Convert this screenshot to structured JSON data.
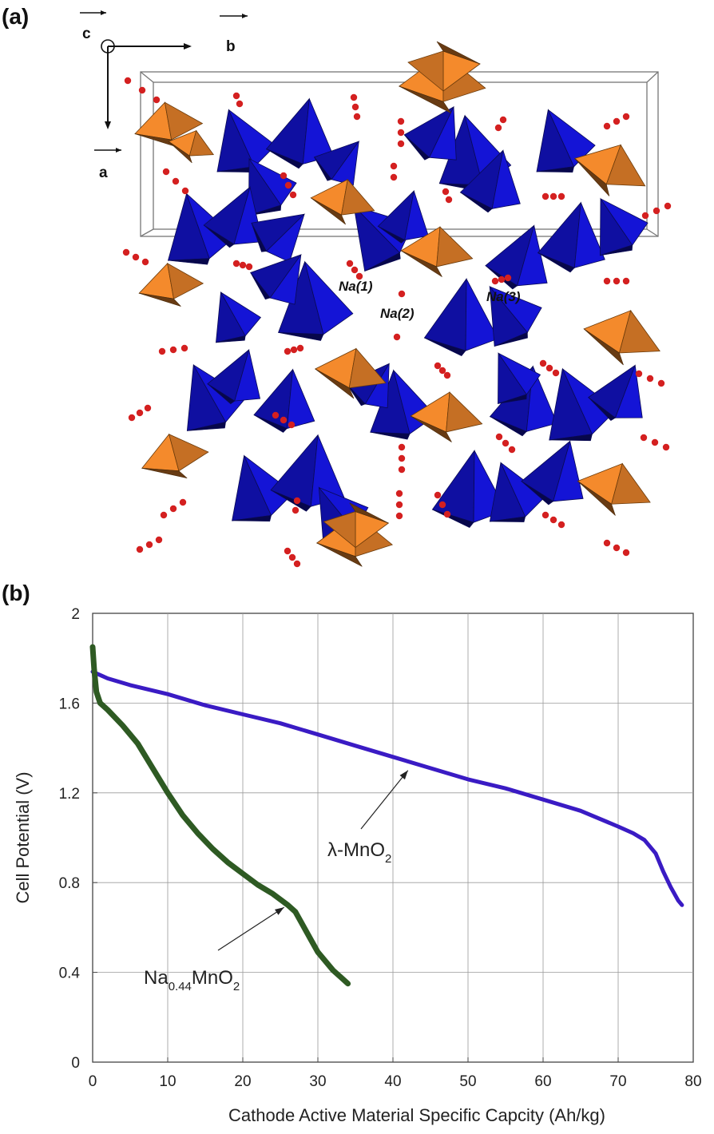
{
  "panel_a": {
    "label": "(a)",
    "axes": {
      "c": "c",
      "b": "b",
      "a": "a"
    },
    "sites": [
      "Na(1)",
      "Na(2)",
      "Na(3)"
    ],
    "colors": {
      "tetrahedra_blue": "#1414d6",
      "octahedra_orange": "#e8832a",
      "na_atoms": "#d42020"
    }
  },
  "panel_b": {
    "label": "(b)"
  },
  "chart_data": {
    "type": "line",
    "xlabel": "Cathode Active Material Specific  Capcity (Ah/kg)",
    "ylabel": "Cell Potential (V)",
    "xlim": [
      0,
      80
    ],
    "ylim": [
      0,
      2
    ],
    "xticks": [
      "0",
      "10",
      "20",
      "30",
      "40",
      "50",
      "60",
      "70",
      "80"
    ],
    "yticks": [
      "0",
      "0.4",
      "0.8",
      "1.2",
      "1.6",
      "2"
    ],
    "grid": true,
    "series": [
      {
        "name": "λ-MnO2",
        "color": "#3a1bc4",
        "x": [
          0,
          2,
          5,
          10,
          15,
          20,
          25,
          30,
          35,
          40,
          45,
          50,
          55,
          60,
          65,
          70,
          72,
          73.5,
          75,
          76,
          77,
          78,
          78.5
        ],
        "y": [
          1.74,
          1.71,
          1.68,
          1.64,
          1.59,
          1.55,
          1.51,
          1.46,
          1.41,
          1.36,
          1.31,
          1.26,
          1.22,
          1.17,
          1.12,
          1.05,
          1.02,
          0.99,
          0.93,
          0.85,
          0.78,
          0.72,
          0.7
        ]
      },
      {
        "name": "Na0.44MnO2",
        "color": "#2e5a23",
        "x": [
          0,
          0.2,
          0.5,
          1,
          2,
          4,
          6,
          8,
          10,
          12,
          14,
          16,
          18,
          20,
          22,
          24,
          26,
          27,
          28,
          29,
          30,
          31,
          32,
          33,
          34
        ],
        "y": [
          1.85,
          1.75,
          1.65,
          1.6,
          1.57,
          1.5,
          1.42,
          1.31,
          1.2,
          1.1,
          1.02,
          0.95,
          0.89,
          0.84,
          0.79,
          0.75,
          0.7,
          0.67,
          0.61,
          0.55,
          0.49,
          0.45,
          0.41,
          0.38,
          0.35
        ]
      }
    ],
    "annotations": [
      {
        "text": "λ-MnO",
        "sub": "2",
        "x": 42,
        "y": 1.3
      },
      {
        "text": "Na",
        "sub": "0.44",
        "text2": "MnO",
        "sub2": "2",
        "x": 25.5,
        "y": 0.69
      }
    ]
  }
}
